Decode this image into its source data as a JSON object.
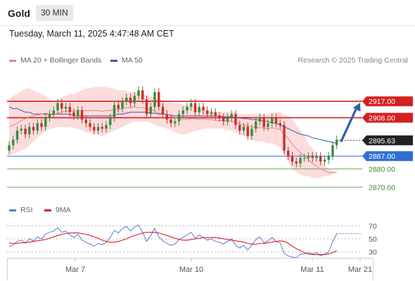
{
  "header": {
    "symbol": "Gold",
    "timeframe": "30 MIN"
  },
  "timestamp": "Tuesday, March 11, 2025 4:47:48 AM CET",
  "legend": {
    "ma20": {
      "label": "MA 20 + Bollinger Bands",
      "color": "#f08080"
    },
    "ma50": {
      "label": "MA 50",
      "color": "#3c5aa6"
    }
  },
  "copyright": "Research © 2025 Trading Central",
  "rsi_legend": {
    "rsi": {
      "label": "RSI",
      "color": "#5b7bd5"
    },
    "ma9": {
      "label": "9MA",
      "color": "#d62020"
    }
  },
  "chart_data": [
    {
      "type": "candlestick",
      "x_ticks": [
        "Mar 7",
        "Mar 10",
        "Mar 11",
        "Mar 21"
      ],
      "ylim": [
        2864,
        2934
      ],
      "last_price": {
        "label": "2895.63",
        "value": 2895.63
      },
      "levels": [
        {
          "label": "2917.00",
          "value": 2917.0,
          "color": "#d62020",
          "style": "resistance"
        },
        {
          "label": "2908.00",
          "value": 2908.0,
          "color": "#d62020",
          "style": "resistance"
        },
        {
          "label": "2887.00",
          "value": 2887.0,
          "color": "#2f6fd6",
          "style": "pivot"
        },
        {
          "label": "2880.00",
          "value": 2880.0,
          "color": "#6aaa5a",
          "style": "support"
        },
        {
          "label": "2870.00",
          "value": 2870.0,
          "color": "#6aaa5a",
          "style": "support"
        }
      ],
      "target_arrow": {
        "from": 2894.8,
        "to": 2916.2
      },
      "closes": [
        2893,
        2896,
        2901,
        2902,
        2899,
        2903,
        2901,
        2905,
        2903,
        2908,
        2910,
        2912,
        2916,
        2913,
        2914,
        2911,
        2909,
        2912,
        2907,
        2905,
        2903,
        2901,
        2903,
        2902,
        2904,
        2908,
        2915,
        2913,
        2917,
        2919,
        2916,
        2920,
        2923,
        2918,
        2910,
        2914,
        2922,
        2914,
        2910,
        2907,
        2905,
        2906,
        2910,
        2912,
        2914,
        2916,
        2911,
        2914,
        2912,
        2910,
        2911,
        2909,
        2908,
        2906,
        2908,
        2910,
        2904,
        2901,
        2903,
        2898,
        2902,
        2906,
        2908,
        2903,
        2905,
        2908,
        2905,
        2904,
        2890,
        2887,
        2884,
        2883,
        2886,
        2886,
        2887,
        2886,
        2887,
        2884,
        2885,
        2887,
        2893,
        2896
      ],
      "ma50": [
        2914,
        2913,
        2913,
        2912,
        2911,
        2911,
        2910,
        2910,
        2910,
        2910,
        2910,
        2910,
        2910,
        2910,
        2910,
        2910,
        2909,
        2909,
        2909,
        2909,
        2909,
        2909,
        2909,
        2909,
        2909,
        2909,
        2909.5,
        2910,
        2910,
        2910.5,
        2911,
        2911,
        2911,
        2911,
        2911,
        2910.5,
        2910.5,
        2910,
        2910,
        2909.5,
        2909.5,
        2909,
        2909,
        2909,
        2909,
        2909,
        2909,
        2909,
        2909,
        2909,
        2909,
        2909,
        2909,
        2908.5,
        2908.5,
        2908.5,
        2908,
        2908,
        2907.5,
        2907.5,
        2907,
        2907,
        2906.5,
        2906,
        2906,
        2905,
        2905,
        2904,
        2903,
        2902,
        2901,
        2900,
        2899,
        2898.5,
        2898,
        2897,
        2896.5,
        2896,
        2895.5,
        2895,
        2894.5,
        2894
      ],
      "bb_upper": [
        2918,
        2920,
        2921,
        2923,
        2924,
        2924,
        2923,
        2922,
        2921,
        2920,
        2918,
        2917,
        2918,
        2919,
        2920,
        2921,
        2921,
        2922,
        2923,
        2924,
        2924,
        2925,
        2925,
        2925,
        2925,
        2924,
        2924,
        2923,
        2923,
        2923,
        2922,
        2922,
        2921,
        2921,
        2920,
        2920,
        2919,
        2918,
        2918,
        2917,
        2917,
        2916,
        2916,
        2915,
        2915,
        2915,
        2914,
        2913,
        2913,
        2912,
        2912,
        2911,
        2911,
        2911,
        2911,
        2911,
        2911,
        2910,
        2910,
        2910,
        2910,
        2910,
        2910,
        2910,
        2910,
        2911,
        2911,
        2911,
        2910,
        2909,
        2907,
        2904,
        2901,
        2898,
        2894,
        2891,
        2888,
        2885,
        2882,
        2880,
        2879,
        2878
      ],
      "bb_lower": [
        2888,
        2888,
        2889,
        2890,
        2891,
        2893,
        2895,
        2897,
        2899,
        2901,
        2902,
        2902,
        2903,
        2903,
        2903,
        2903,
        2902,
        2902,
        2901,
        2900,
        2900,
        2899,
        2899,
        2898,
        2899,
        2900,
        2901,
        2902,
        2903,
        2904,
        2905,
        2906,
        2906,
        2906,
        2906,
        2905,
        2904,
        2903,
        2903,
        2902,
        2901,
        2900,
        2899,
        2899,
        2899,
        2900,
        2901,
        2901,
        2902,
        2902,
        2902,
        2902,
        2902,
        2902,
        2901,
        2901,
        2900,
        2899,
        2898,
        2897,
        2896,
        2895,
        2895,
        2895,
        2894,
        2894,
        2893,
        2892,
        2888,
        2884,
        2880,
        2878,
        2877,
        2876,
        2876,
        2875,
        2875,
        2875,
        2876,
        2876,
        2877,
        2878
      ]
    },
    {
      "type": "line",
      "y_ticks": [
        "70",
        "50",
        "30"
      ],
      "ylim": [
        20,
        80
      ],
      "rsi": [
        38,
        41,
        46,
        48,
        44,
        50,
        47,
        53,
        50,
        57,
        60,
        62,
        67,
        60,
        62,
        56,
        52,
        57,
        48,
        45,
        42,
        39,
        43,
        41,
        45,
        52,
        63,
        59,
        66,
        69,
        62,
        68,
        71,
        60,
        46,
        55,
        66,
        53,
        47,
        43,
        40,
        42,
        49,
        52,
        56,
        60,
        51,
        56,
        52,
        48,
        50,
        46,
        45,
        42,
        46,
        50,
        40,
        36,
        40,
        33,
        41,
        49,
        53,
        44,
        47,
        52,
        46,
        44,
        28,
        24,
        22,
        21,
        27,
        27,
        29,
        27,
        29,
        24,
        27,
        30,
        46,
        58
      ],
      "ma9": [
        44,
        43,
        43,
        44,
        44,
        45,
        46,
        47,
        48,
        49,
        51,
        53,
        55,
        57,
        58,
        59,
        59,
        59,
        58,
        57,
        55,
        53,
        51,
        48,
        46,
        45,
        45,
        46,
        48,
        50,
        53,
        55,
        57,
        59,
        60,
        60,
        60,
        59,
        57,
        55,
        53,
        51,
        49,
        48,
        48,
        49,
        50,
        51,
        52,
        52,
        52,
        52,
        51,
        50,
        49,
        48,
        47,
        46,
        45,
        43,
        42,
        42,
        43,
        43,
        44,
        45,
        46,
        47,
        46,
        43,
        39,
        35,
        32,
        29,
        27,
        26,
        26,
        26,
        26,
        27,
        29,
        32
      ]
    }
  ]
}
